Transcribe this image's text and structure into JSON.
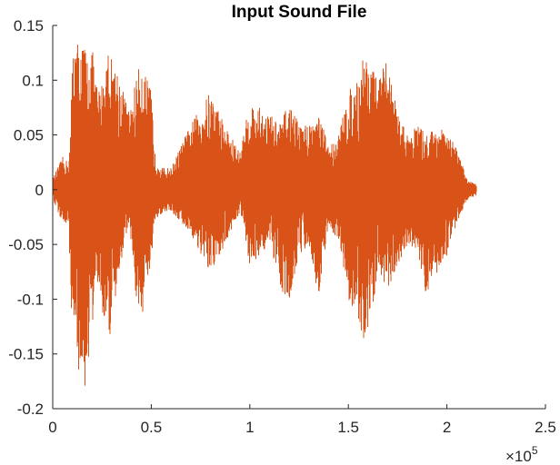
{
  "chart_data": {
    "type": "line",
    "title": "Input Sound File",
    "xlabel": "",
    "ylabel": "",
    "xlim": [
      0,
      250000
    ],
    "ylim": [
      -0.2,
      0.15
    ],
    "x_exponent_label": "×10",
    "x_exponent_power": "5",
    "x_ticks": [
      {
        "value": 0,
        "label": "0"
      },
      {
        "value": 50000,
        "label": "0.5"
      },
      {
        "value": 100000,
        "label": "1"
      },
      {
        "value": 150000,
        "label": "1.5"
      },
      {
        "value": 200000,
        "label": "2"
      },
      {
        "value": 250000,
        "label": "2.5"
      }
    ],
    "y_ticks": [
      {
        "value": 0.15,
        "label": "0.15"
      },
      {
        "value": 0.1,
        "label": "0.1"
      },
      {
        "value": 0.05,
        "label": "0.05"
      },
      {
        "value": 0,
        "label": "0"
      },
      {
        "value": -0.05,
        "label": "-0.05"
      },
      {
        "value": -0.1,
        "label": "-0.1"
      },
      {
        "value": -0.15,
        "label": "-0.15"
      },
      {
        "value": -0.2,
        "label": "-0.2"
      }
    ],
    "grid": false,
    "series": [
      {
        "color": "#D95319",
        "envelope": {
          "x": [
            0,
            5000,
            8000,
            9000,
            10000,
            12000,
            14000,
            16000,
            18000,
            20000,
            22000,
            24000,
            26000,
            28000,
            30000,
            33000,
            36000,
            39000,
            42000,
            45000,
            48000,
            50000,
            52000,
            56000,
            60000,
            70000,
            80000,
            90000,
            95000,
            100000,
            110000,
            115000,
            120000,
            125000,
            130000,
            135000,
            140000,
            145000,
            150000,
            155000,
            158000,
            160000,
            165000,
            170000,
            175000,
            180000,
            185000,
            190000,
            195000,
            200000,
            205000,
            210000,
            215000
          ],
          "upper": [
            0.01,
            0.03,
            0.025,
            0.05,
            0.13,
            0.14,
            0.13,
            0.135,
            0.12,
            0.13,
            0.1,
            0.09,
            0.11,
            0.13,
            0.12,
            0.11,
            0.09,
            0.07,
            0.1,
            0.12,
            0.1,
            0.09,
            0.03,
            0.02,
            0.02,
            0.06,
            0.09,
            0.05,
            0.035,
            0.08,
            0.07,
            0.06,
            0.08,
            0.06,
            0.06,
            0.07,
            0.04,
            0.05,
            0.09,
            0.1,
            0.13,
            0.12,
            0.1,
            0.12,
            0.07,
            0.05,
            0.06,
            0.05,
            0.06,
            0.05,
            0.04,
            0.01,
            0.005
          ],
          "lower": [
            -0.01,
            -0.03,
            -0.04,
            -0.1,
            -0.12,
            -0.16,
            -0.17,
            -0.19,
            -0.16,
            -0.13,
            -0.08,
            -0.1,
            -0.12,
            -0.14,
            -0.13,
            -0.09,
            -0.05,
            -0.03,
            -0.1,
            -0.12,
            -0.09,
            -0.07,
            -0.03,
            -0.02,
            -0.02,
            -0.04,
            -0.08,
            -0.04,
            -0.02,
            -0.07,
            -0.05,
            -0.09,
            -0.1,
            -0.06,
            -0.05,
            -0.1,
            -0.03,
            -0.05,
            -0.1,
            -0.12,
            -0.15,
            -0.13,
            -0.08,
            -0.09,
            -0.07,
            -0.05,
            -0.06,
            -0.1,
            -0.08,
            -0.06,
            -0.03,
            -0.01,
            -0.005
          ]
        }
      }
    ]
  }
}
